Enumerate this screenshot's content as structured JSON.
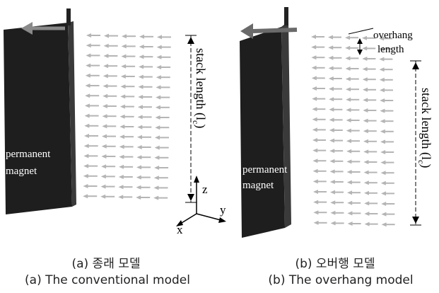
{
  "panel_a": {
    "magnet_label_line1": "permanent",
    "magnet_label_line2": "magnet",
    "stack_length_label": "stack length (l",
    "stack_length_subscript": "c",
    "stack_length_close": ")",
    "axes": {
      "z": "z",
      "y": "y",
      "x": "x"
    },
    "caption_korean": "(a) 종래 모델",
    "caption_english": "(a) The conventional model"
  },
  "panel_b": {
    "magnet_label_line1": "permanent",
    "magnet_label_line2": "magnet",
    "overhang_line1": "overhang",
    "overhang_line2": "length",
    "stack_length_label": "stack length (l",
    "stack_length_subscript": "c",
    "stack_length_close": ")",
    "caption_korean": "(b) 오버행 모델",
    "caption_english": "(b) The overhang model"
  },
  "colors": {
    "magnet": "#1e1e1e",
    "magnet_edge": "#3a3a3a",
    "field_arrow": "#b5b5b5",
    "main_arrow_a": "#8a8a8a",
    "main_arrow_b": "#6a6a6a"
  }
}
